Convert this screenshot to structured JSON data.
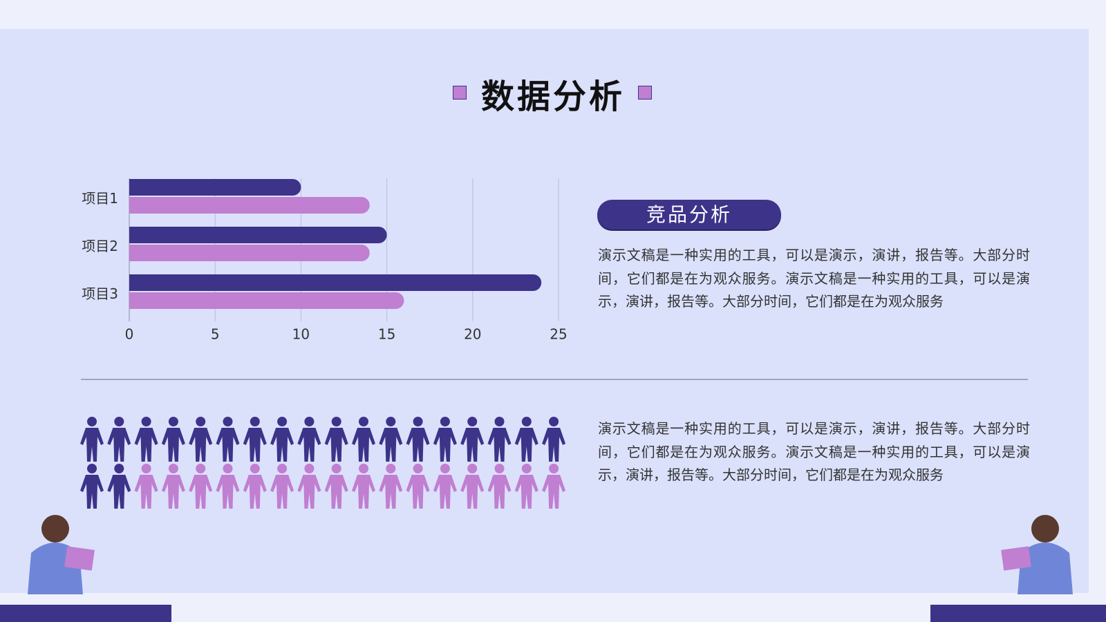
{
  "title": "数据分析",
  "badge": "竞品分析",
  "paragraph_1": "演示文稿是一种实用的工具，可以是演示，演讲，报告等。大部分时间，它们都是在为观众服务。演示文稿是一种实用的工具，可以是演示，演讲，报告等。大部分时间，它们都是在为观众服务",
  "paragraph_2": "演示文稿是一种实用的工具，可以是演示，演讲，报告等。大部分时间，它们都是在为观众服务。演示文稿是一种实用的工具，可以是演示，演讲，报告等。大部分时间，它们都是在为观众服务",
  "chart_data": {
    "type": "hbar",
    "categories": [
      "项目1",
      "项目2",
      "项目3"
    ],
    "series": [
      {
        "color": "#3d3389",
        "values": [
          10,
          15,
          24
        ]
      },
      {
        "color": "#c07fd0",
        "values": [
          14,
          14,
          16
        ]
      }
    ],
    "xlim": [
      0,
      25
    ],
    "xticks": [
      0,
      5,
      10,
      15,
      20,
      25
    ],
    "grid": true
  }
}
